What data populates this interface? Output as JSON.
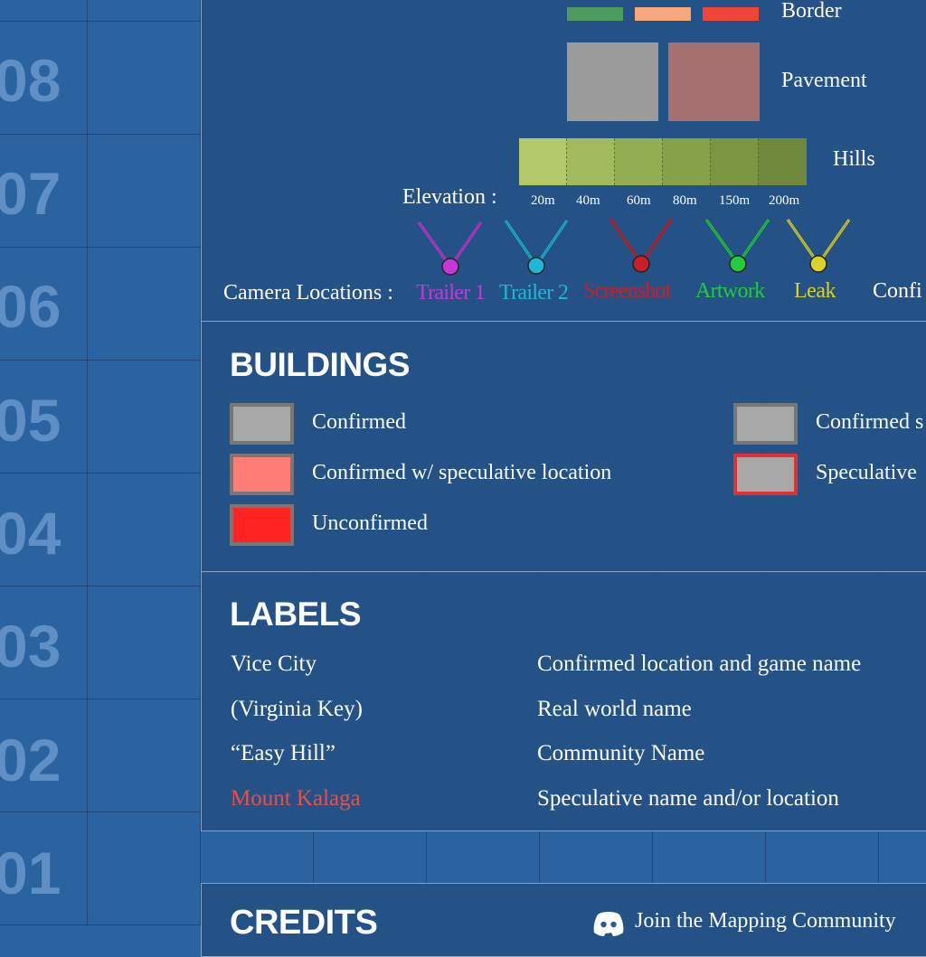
{
  "row_numbers": [
    "08",
    "07",
    "06",
    "05",
    "04",
    "03",
    "02",
    "01"
  ],
  "legend": {
    "border_label": "Border",
    "border_colors": [
      "#4e9a62",
      "#f7a77c",
      "#ef4438"
    ],
    "pavement_label": "Pavement",
    "pavement_colors": [
      "#9b9b9b",
      "#a5706f"
    ],
    "hills_label": "Hills",
    "hill_colors": [
      "#b3c869",
      "#a2ba5e",
      "#93ad52",
      "#86a14a",
      "#7c9543",
      "#6f883b"
    ],
    "elevation_label": "Elevation :",
    "elevation_ticks": [
      "20m",
      "40m",
      "60m",
      "80m",
      "150m",
      "200m"
    ],
    "camera_label": "Camera Locations :",
    "cameras": [
      {
        "label": "Trailer 1",
        "color": "#c438d6"
      },
      {
        "label": "Trailer 2",
        "color": "#20b7d4"
      },
      {
        "label": "Screenshot",
        "color": "#c81f2a"
      },
      {
        "label": "Artwork",
        "color": "#22cc3c"
      },
      {
        "label": "Leak",
        "color": "#d9d328"
      }
    ],
    "camera_extra_label": "Confi"
  },
  "buildings": {
    "heading": "BUILDINGS",
    "items": [
      {
        "label": "Confirmed",
        "fill": "#a8a8a8",
        "border": "#777777"
      },
      {
        "label": "Confirmed w/ speculative location",
        "fill": "#ff7d76",
        "border": "#777777"
      },
      {
        "label": "Unconfirmed",
        "fill": "#ff2424",
        "border": "#777777"
      },
      {
        "label": "Confirmed s",
        "fill": "#a8a8a8",
        "border": "#777777"
      },
      {
        "label": "Speculative",
        "fill": "#a8a8a8",
        "border": "#e03030"
      }
    ]
  },
  "labels": {
    "heading": "LABELS",
    "rows": [
      {
        "example": "Vice City",
        "meaning": "Confirmed location and game name",
        "color": "#ffffff"
      },
      {
        "example": "(Virginia Key)",
        "meaning": "Real world name",
        "color": "#ffffff"
      },
      {
        "example": "“Easy Hill”",
        "meaning": "Community Name",
        "color": "#ffffff"
      },
      {
        "example": "Mount Kalaga",
        "meaning": "Speculative name and/or location",
        "color": "#e6504a"
      }
    ]
  },
  "credits": {
    "heading": "CREDITS",
    "community_link": "Join the Mapping Community",
    "icon": "discord-icon"
  }
}
